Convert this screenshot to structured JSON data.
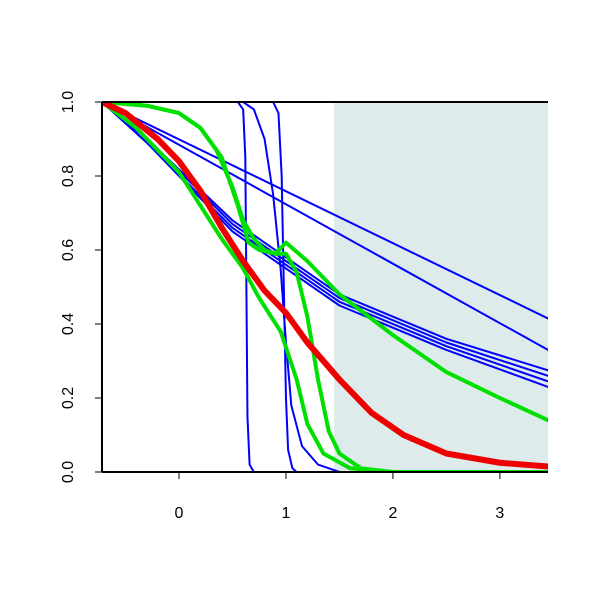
{
  "chart_data": {
    "type": "line",
    "title": "",
    "xlabel": "",
    "ylabel": "",
    "xlim": [
      -0.72,
      3.45
    ],
    "ylim": [
      0.0,
      1.0
    ],
    "x_ticks": [
      0,
      1,
      2,
      3
    ],
    "x_tick_labels": [
      "0",
      "1",
      "2",
      "3"
    ],
    "y_ticks": [
      0.0,
      0.2,
      0.4,
      0.6,
      0.8,
      1.0
    ],
    "y_tick_labels": [
      "0.0",
      "0.2",
      "0.4",
      "0.6",
      "0.8",
      "1.0"
    ],
    "grid": false,
    "legend": "none",
    "shaded_region": {
      "x": [
        1.45,
        3.45
      ],
      "color": "#deebeb"
    },
    "series": [
      {
        "color": "#0000ff",
        "width": 2,
        "points": [
          [
            -0.72,
            1.0
          ],
          [
            3.45,
            0.415
          ]
        ]
      },
      {
        "color": "#0000ff",
        "width": 2,
        "points": [
          [
            -0.72,
            1.0
          ],
          [
            3.45,
            0.33
          ]
        ]
      },
      {
        "color": "#0000ff",
        "width": 2,
        "points": [
          [
            -0.72,
            1.0
          ],
          [
            -0.3,
            0.9
          ],
          [
            0.5,
            0.68
          ],
          [
            1.5,
            0.48
          ],
          [
            2.5,
            0.36
          ],
          [
            3.45,
            0.275
          ]
        ]
      },
      {
        "color": "#0000ff",
        "width": 2,
        "points": [
          [
            -0.72,
            1.0
          ],
          [
            -0.3,
            0.9
          ],
          [
            0.5,
            0.67
          ],
          [
            1.5,
            0.47
          ],
          [
            2.5,
            0.35
          ],
          [
            3.45,
            0.26
          ]
        ]
      },
      {
        "color": "#0000ff",
        "width": 2,
        "points": [
          [
            -0.72,
            1.0
          ],
          [
            -0.3,
            0.89
          ],
          [
            0.5,
            0.66
          ],
          [
            1.5,
            0.46
          ],
          [
            2.5,
            0.34
          ],
          [
            3.45,
            0.245
          ]
        ]
      },
      {
        "color": "#0000ff",
        "width": 2,
        "points": [
          [
            -0.72,
            1.0
          ],
          [
            -0.3,
            0.89
          ],
          [
            0.5,
            0.65
          ],
          [
            1.5,
            0.45
          ],
          [
            2.5,
            0.33
          ],
          [
            3.45,
            0.23
          ]
        ]
      },
      {
        "color": "#0000ff",
        "width": 2,
        "points": [
          [
            -0.72,
            1.0
          ],
          [
            0.55,
            1.0
          ],
          [
            0.6,
            0.98
          ],
          [
            0.62,
            0.85
          ],
          [
            0.63,
            0.5
          ],
          [
            0.64,
            0.15
          ],
          [
            0.66,
            0.02
          ],
          [
            0.7,
            0.0
          ],
          [
            3.45,
            0.0
          ]
        ]
      },
      {
        "color": "#0000ff",
        "width": 2,
        "points": [
          [
            -0.72,
            1.0
          ],
          [
            0.6,
            1.0
          ],
          [
            0.7,
            0.98
          ],
          [
            0.8,
            0.9
          ],
          [
            0.88,
            0.75
          ],
          [
            0.95,
            0.55
          ],
          [
            1.0,
            0.35
          ],
          [
            1.05,
            0.18
          ],
          [
            1.15,
            0.07
          ],
          [
            1.3,
            0.02
          ],
          [
            1.5,
            0.0
          ],
          [
            3.45,
            0.0
          ]
        ]
      },
      {
        "color": "#0000ff",
        "width": 2,
        "points": [
          [
            -0.72,
            1.0
          ],
          [
            0.88,
            1.0
          ],
          [
            0.93,
            0.97
          ],
          [
            0.96,
            0.8
          ],
          [
            0.98,
            0.5
          ],
          [
            1.0,
            0.2
          ],
          [
            1.02,
            0.06
          ],
          [
            1.06,
            0.01
          ],
          [
            1.1,
            0.0
          ],
          [
            3.45,
            0.0
          ]
        ]
      },
      {
        "color": "#00e000",
        "width": 4,
        "points": [
          [
            -0.72,
            1.0
          ],
          [
            -0.3,
            0.99
          ],
          [
            0.0,
            0.97
          ],
          [
            0.2,
            0.93
          ],
          [
            0.35,
            0.87
          ],
          [
            0.5,
            0.77
          ],
          [
            0.6,
            0.68
          ],
          [
            0.7,
            0.63
          ],
          [
            0.8,
            0.6
          ],
          [
            0.9,
            0.59
          ],
          [
            1.0,
            0.59
          ],
          [
            1.1,
            0.54
          ],
          [
            1.2,
            0.42
          ],
          [
            1.3,
            0.25
          ],
          [
            1.4,
            0.11
          ],
          [
            1.5,
            0.05
          ],
          [
            1.7,
            0.01
          ],
          [
            2.0,
            0.0
          ],
          [
            3.45,
            0.0
          ]
        ]
      },
      {
        "color": "#00e000",
        "width": 4,
        "points": [
          [
            -0.72,
            1.0
          ],
          [
            -0.4,
            0.93
          ],
          [
            0.0,
            0.81
          ],
          [
            0.2,
            0.72
          ],
          [
            0.4,
            0.63
          ],
          [
            0.6,
            0.55
          ],
          [
            0.75,
            0.47
          ],
          [
            0.95,
            0.38
          ],
          [
            1.1,
            0.25
          ],
          [
            1.2,
            0.13
          ],
          [
            1.35,
            0.05
          ],
          [
            1.6,
            0.01
          ],
          [
            2.0,
            0.0
          ],
          [
            3.45,
            0.0
          ]
        ]
      },
      {
        "color": "#00e000",
        "width": 4,
        "points": [
          [
            -0.72,
            1.0
          ],
          [
            -0.3,
            0.99
          ],
          [
            0.0,
            0.97
          ],
          [
            0.2,
            0.93
          ],
          [
            0.4,
            0.85
          ],
          [
            0.55,
            0.72
          ],
          [
            0.65,
            0.62
          ],
          [
            0.75,
            0.6
          ],
          [
            0.9,
            0.59
          ],
          [
            1.0,
            0.62
          ],
          [
            1.2,
            0.57
          ],
          [
            1.5,
            0.48
          ],
          [
            2.0,
            0.37
          ],
          [
            2.5,
            0.27
          ],
          [
            3.0,
            0.2
          ],
          [
            3.45,
            0.14
          ]
        ]
      },
      {
        "color": "#ee0000",
        "width": 6,
        "points": [
          [
            -0.72,
            1.0
          ],
          [
            -0.5,
            0.97
          ],
          [
            -0.2,
            0.9
          ],
          [
            0.0,
            0.84
          ],
          [
            0.2,
            0.76
          ],
          [
            0.4,
            0.66
          ],
          [
            0.6,
            0.57
          ],
          [
            0.8,
            0.49
          ],
          [
            1.0,
            0.43
          ],
          [
            1.2,
            0.35
          ],
          [
            1.5,
            0.25
          ],
          [
            1.8,
            0.16
          ],
          [
            2.1,
            0.1
          ],
          [
            2.5,
            0.05
          ],
          [
            3.0,
            0.025
          ],
          [
            3.45,
            0.015
          ]
        ]
      }
    ]
  }
}
